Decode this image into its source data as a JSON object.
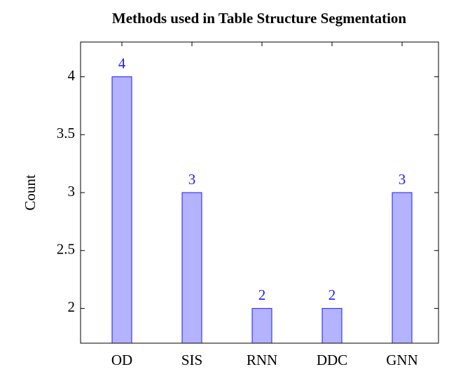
{
  "chart_data": {
    "type": "bar",
    "title": "Methods used in Table Structure Segmentation",
    "y_label": "Count",
    "categories": [
      "OD",
      "SIS",
      "RNN",
      "DDC",
      "GNN"
    ],
    "values": [
      4,
      3,
      2,
      2,
      3
    ],
    "color": "#b3b3ff",
    "edge_color": "#1a1aff",
    "ylim": [
      1.7,
      4.3
    ],
    "yticks": [
      2,
      2.5,
      3,
      3.5,
      4
    ],
    "grid": false
  }
}
